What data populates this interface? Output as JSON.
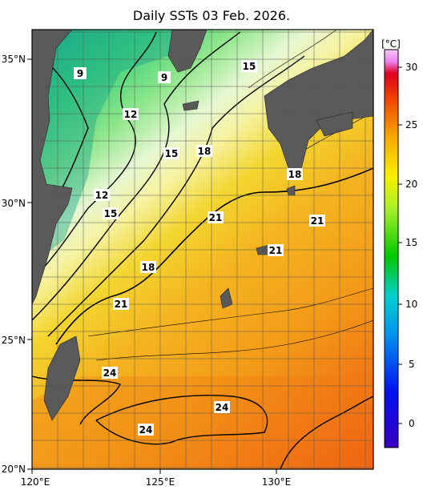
{
  "title": "Daily SSTs 03 Feb. 2026.",
  "colorbar": {
    "unit": "[°C]",
    "ticks": [
      "30",
      "25",
      "20",
      "15",
      "10",
      "5",
      "0"
    ]
  },
  "axes": {
    "lat_labels": [
      "35°N",
      "30°N",
      "25°N",
      "20°N"
    ],
    "lon_labels": [
      "120°E",
      "125°E",
      "130°E"
    ]
  },
  "contour_labels": {
    "c9a": "9",
    "c9b": "9",
    "c15a": "15",
    "c12a": "12",
    "c15b": "15",
    "c18a": "18",
    "c18b": "18",
    "c12b": "12",
    "c15c": "15",
    "c21a": "21",
    "c21b": "21",
    "c21c": "21",
    "c18c": "18",
    "c21d": "21",
    "c24a": "24",
    "c24b": "24",
    "c24c": "24"
  },
  "colors": {
    "land": "#5a5a5a",
    "warm": "#f7a41c",
    "cold": "#1ea88a"
  }
}
